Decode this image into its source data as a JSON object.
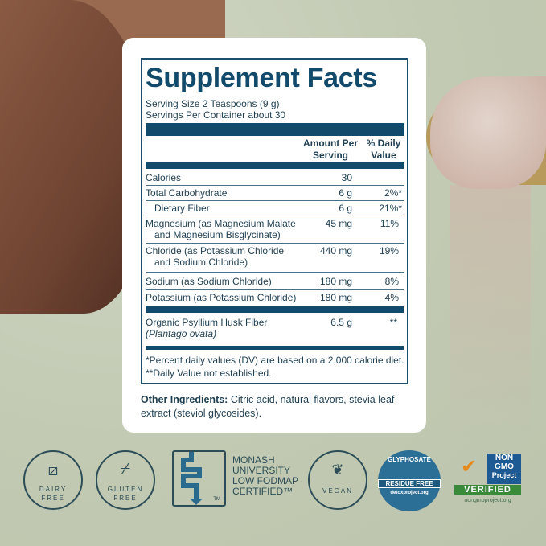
{
  "label": {
    "title": "Supplement Facts",
    "serving_size": "Serving Size 2 Teaspoons (9 g)",
    "servings_per_container": "Servings Per Container about 30",
    "col_amount": [
      "Amount Per",
      "Serving"
    ],
    "col_dv": [
      "% Daily",
      "Value"
    ],
    "rows": [
      {
        "name": "Calories",
        "amount": "30",
        "dv": ""
      },
      {
        "name": "Total Carbohydrate",
        "amount": "6 g",
        "dv": "2%*"
      },
      {
        "name": "Dietary Fiber",
        "amount": "6 g",
        "dv": "21%*"
      },
      {
        "name": "Magnesium (as Magnesium Malate",
        "name2": "and Magnesium Bisglycinate)",
        "amount": "45 mg",
        "dv": "11%"
      },
      {
        "name": "Chloride (as Potassium Chloride",
        "name2": "and Sodium Chloride)",
        "amount": "440 mg",
        "dv": "19%"
      },
      {
        "name": "Sodium (as Sodium Chloride)",
        "amount": "180 mg",
        "dv": "8%"
      },
      {
        "name": "Potassium (as Potassium Chloride)",
        "amount": "180 mg",
        "dv": "4%"
      },
      {
        "name": "Organic Psyllium Husk Fiber",
        "name2": "Plantago ovata",
        "amount": "6.5 g",
        "dv": "**"
      }
    ],
    "footnote1": "*Percent daily values (DV) are based on a 2,000 calorie diet.",
    "footnote2": "**Daily Value not established.",
    "other_label": "Other Ingredients:",
    "other_text": " Citric acid, natural flavors, stevia leaf extract (steviol glycosides)."
  },
  "badges": {
    "dairy": [
      "DAIRY",
      "FREE"
    ],
    "gluten": [
      "GLUTEN",
      "FREE"
    ],
    "monash": [
      "MONASH",
      "UNIVERSITY",
      "LOW FODMAP",
      "CERTIFIED™"
    ],
    "monash_tm": "TM",
    "vegan": "VEGAN",
    "glyphosate": {
      "top": "GLYPHOSATE",
      "band": "RESIDUE FREE",
      "bottom": "detoxproject.org"
    },
    "nongmo": {
      "top": [
        "NON",
        "GMO",
        "Project"
      ],
      "band": "VERIFIED",
      "url": "nongmoproject.org"
    }
  },
  "colors": {
    "label_blue": "#124a6c",
    "background": "#c4ccb6"
  }
}
